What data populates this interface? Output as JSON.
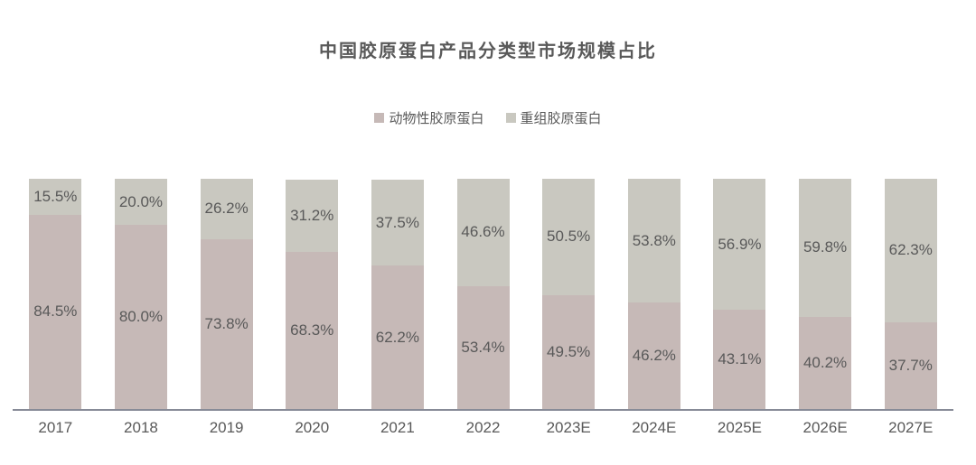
{
  "chart_data": {
    "type": "bar",
    "stacked": true,
    "orientation": "vertical",
    "title": "中国胶原蛋白产品分类型市场规模占比",
    "categories": [
      "2017",
      "2018",
      "2019",
      "2020",
      "2021",
      "2022",
      "2023E",
      "2024E",
      "2025E",
      "2026E",
      "2027E"
    ],
    "series": [
      {
        "name": "动物性胶原蛋白",
        "key": "animal",
        "color": "#c6b9b7",
        "values": [
          84.5,
          80.0,
          73.8,
          68.3,
          62.2,
          53.4,
          49.5,
          46.2,
          43.1,
          40.2,
          37.7
        ]
      },
      {
        "name": "重组胶原蛋白",
        "key": "recombinant",
        "color": "#c9c8c0",
        "values": [
          15.5,
          20.0,
          26.2,
          31.2,
          37.5,
          46.6,
          50.5,
          53.8,
          56.9,
          59.8,
          62.3
        ]
      }
    ],
    "value_suffix": "%",
    "value_decimals": 1,
    "ylim": [
      0,
      100
    ],
    "grid": false,
    "legend_position": "top-center",
    "data_labels": "inside-center",
    "colors": {
      "title_text": "#595959",
      "label_text": "#595959",
      "axis_line": "#878b97",
      "background": "#ffffff"
    }
  }
}
